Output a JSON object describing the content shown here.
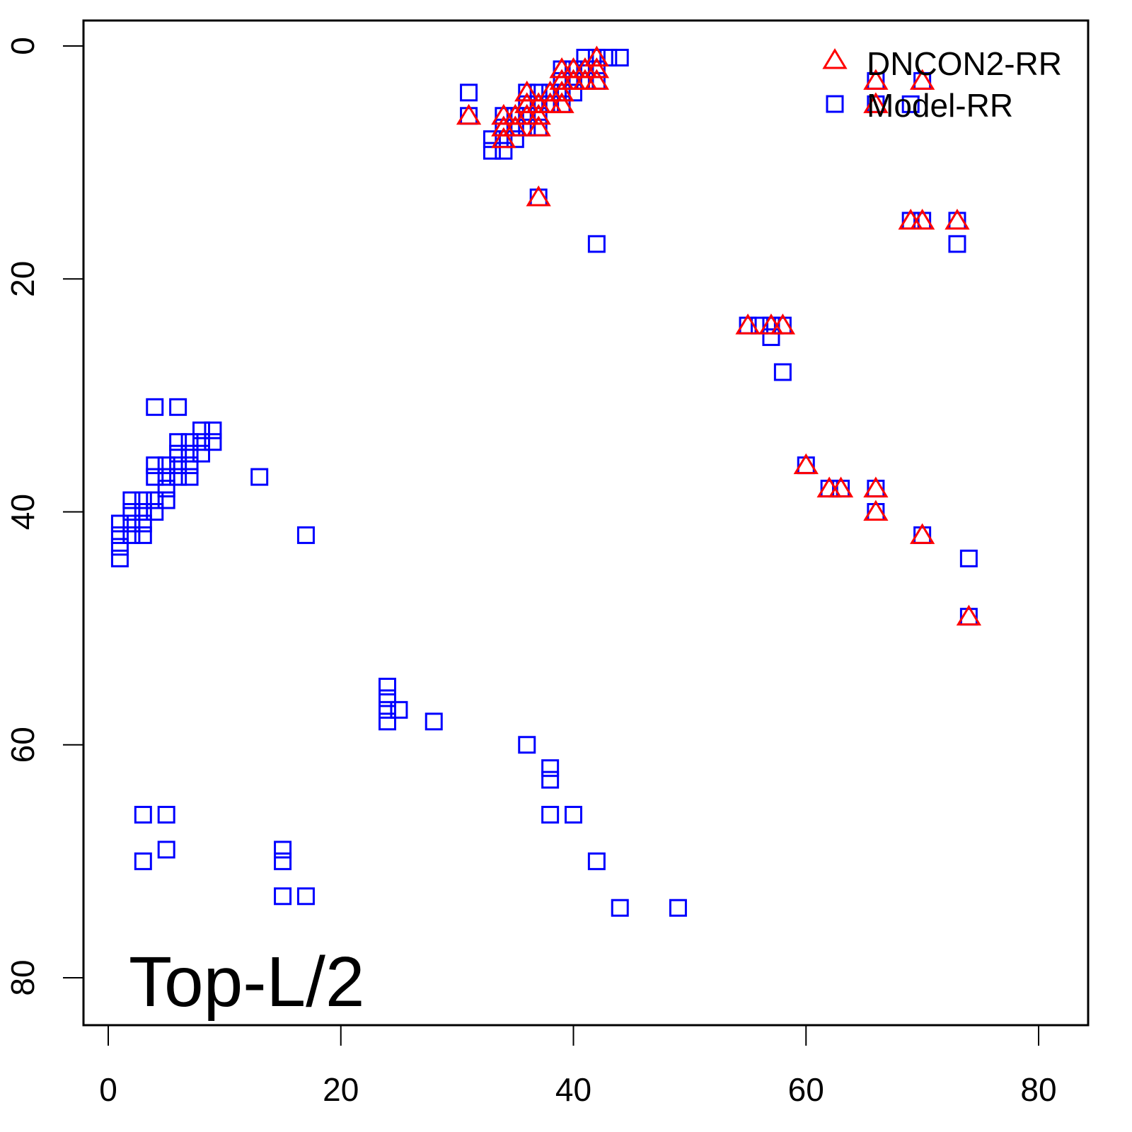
{
  "chart_data": {
    "type": "scatter",
    "title": "",
    "xlabel": "",
    "ylabel": "",
    "xlim": [
      -2.2,
      84
    ],
    "ylim": [
      85,
      -2.2
    ],
    "y_inverted": true,
    "grid": false,
    "x_ticks": [
      0,
      20,
      40,
      60,
      80
    ],
    "y_ticks": [
      0,
      20,
      40,
      60,
      80
    ],
    "annotation": "Top-L/2",
    "legend": {
      "position": "top-right",
      "entries": [
        "DNCON2-RR",
        "Model-RR"
      ]
    },
    "series": [
      {
        "name": "DNCON2-RR",
        "marker": "triangle",
        "color": "#ff0000",
        "points": [
          [
            31,
            6
          ],
          [
            34,
            6
          ],
          [
            34,
            7
          ],
          [
            34,
            8
          ],
          [
            35,
            6
          ],
          [
            35,
            7
          ],
          [
            36,
            4
          ],
          [
            36,
            5
          ],
          [
            36,
            6
          ],
          [
            37,
            5
          ],
          [
            37,
            6
          ],
          [
            37,
            7
          ],
          [
            38,
            4
          ],
          [
            38,
            5
          ],
          [
            39,
            2
          ],
          [
            39,
            3
          ],
          [
            39,
            4
          ],
          [
            39,
            5
          ],
          [
            40,
            2
          ],
          [
            40,
            3
          ],
          [
            41,
            2
          ],
          [
            41,
            3
          ],
          [
            42,
            1
          ],
          [
            42,
            2
          ],
          [
            42,
            3
          ],
          [
            37,
            13
          ],
          [
            66,
            3
          ],
          [
            66,
            5
          ],
          [
            70,
            3
          ],
          [
            69,
            15
          ],
          [
            70,
            15
          ],
          [
            73,
            15
          ],
          [
            55,
            24
          ],
          [
            57,
            24
          ],
          [
            58,
            24
          ],
          [
            60,
            36
          ],
          [
            62,
            38
          ],
          [
            63,
            38
          ],
          [
            66,
            38
          ],
          [
            66,
            40
          ],
          [
            70,
            42
          ],
          [
            74,
            49
          ]
        ]
      },
      {
        "name": "Model-RR",
        "marker": "square",
        "color": "#0000ff",
        "points": [
          [
            31,
            4
          ],
          [
            31,
            6
          ],
          [
            33,
            8
          ],
          [
            33,
            9
          ],
          [
            34,
            6
          ],
          [
            34,
            7
          ],
          [
            34,
            8
          ],
          [
            34,
            9
          ],
          [
            35,
            6
          ],
          [
            35,
            7
          ],
          [
            35,
            8
          ],
          [
            36,
            4
          ],
          [
            36,
            5
          ],
          [
            36,
            6
          ],
          [
            36,
            7
          ],
          [
            37,
            4
          ],
          [
            37,
            5
          ],
          [
            37,
            6
          ],
          [
            37,
            7
          ],
          [
            38,
            4
          ],
          [
            38,
            5
          ],
          [
            39,
            2
          ],
          [
            39,
            3
          ],
          [
            39,
            4
          ],
          [
            39,
            5
          ],
          [
            40,
            2
          ],
          [
            40,
            3
          ],
          [
            40,
            4
          ],
          [
            41,
            1
          ],
          [
            41,
            2
          ],
          [
            41,
            3
          ],
          [
            42,
            1
          ],
          [
            42,
            2
          ],
          [
            42,
            3
          ],
          [
            43,
            1
          ],
          [
            44,
            1
          ],
          [
            37,
            13
          ],
          [
            42,
            17
          ],
          [
            66,
            3
          ],
          [
            66,
            5
          ],
          [
            69,
            5
          ],
          [
            70,
            3
          ],
          [
            69,
            15
          ],
          [
            70,
            15
          ],
          [
            73,
            15
          ],
          [
            73,
            17
          ],
          [
            55,
            24
          ],
          [
            56,
            24
          ],
          [
            57,
            24
          ],
          [
            57,
            25
          ],
          [
            58,
            24
          ],
          [
            58,
            28
          ],
          [
            60,
            36
          ],
          [
            62,
            38
          ],
          [
            63,
            38
          ],
          [
            66,
            38
          ],
          [
            66,
            40
          ],
          [
            70,
            42
          ],
          [
            74,
            44
          ],
          [
            74,
            49
          ],
          [
            1,
            41
          ],
          [
            1,
            42
          ],
          [
            1,
            43
          ],
          [
            1,
            44
          ],
          [
            2,
            39
          ],
          [
            2,
            40
          ],
          [
            2,
            41
          ],
          [
            2,
            42
          ],
          [
            3,
            39
          ],
          [
            3,
            40
          ],
          [
            3,
            41
          ],
          [
            3,
            42
          ],
          [
            4,
            31
          ],
          [
            4,
            36
          ],
          [
            4,
            37
          ],
          [
            4,
            39
          ],
          [
            4,
            40
          ],
          [
            5,
            36
          ],
          [
            5,
            37
          ],
          [
            5,
            38
          ],
          [
            5,
            39
          ],
          [
            6,
            31
          ],
          [
            6,
            34
          ],
          [
            6,
            35
          ],
          [
            6,
            36
          ],
          [
            6,
            37
          ],
          [
            7,
            34
          ],
          [
            7,
            35
          ],
          [
            7,
            36
          ],
          [
            7,
            37
          ],
          [
            8,
            33
          ],
          [
            8,
            34
          ],
          [
            8,
            35
          ],
          [
            9,
            33
          ],
          [
            9,
            34
          ],
          [
            13,
            37
          ],
          [
            17,
            42
          ],
          [
            24,
            55
          ],
          [
            24,
            56
          ],
          [
            24,
            57
          ],
          [
            24,
            58
          ],
          [
            25,
            57
          ],
          [
            28,
            58
          ],
          [
            36,
            60
          ],
          [
            38,
            62
          ],
          [
            38,
            63
          ],
          [
            38,
            66
          ],
          [
            40,
            66
          ],
          [
            3,
            66
          ],
          [
            5,
            66
          ],
          [
            3,
            70
          ],
          [
            5,
            69
          ],
          [
            15,
            69
          ],
          [
            15,
            70
          ],
          [
            15,
            73
          ],
          [
            17,
            73
          ],
          [
            42,
            70
          ],
          [
            44,
            74
          ],
          [
            49,
            74
          ]
        ]
      }
    ]
  }
}
